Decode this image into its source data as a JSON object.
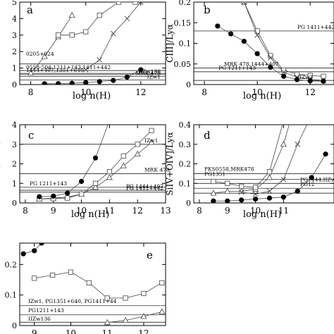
{
  "figure": {
    "panels": [
      {
        "id": "a",
        "letter": "a",
        "xlabel": "log n(H)",
        "ylabel": "",
        "xticks": [
          "8",
          "10",
          "12"
        ],
        "yticks": [
          "0",
          "1",
          "2",
          "3",
          "4",
          "5"
        ],
        "annotations": [
          "0205+024",
          "0558-504,1211+143,1411+442",
          "1444+407,1351+640",
          "IIZw136",
          "MRK 478",
          "IZw1"
        ]
      },
      {
        "id": "b",
        "letter": "b",
        "xlabel": "log n(H)",
        "ylabel": "CIII]/Lyα",
        "xticks": [
          "8",
          "10",
          "12"
        ],
        "yticks": [
          "0",
          "0.05",
          "0.1",
          "0.15",
          "0.2"
        ],
        "annotations": [
          "PG 1411+442",
          "MRK 478,1444+407",
          "PG 1211+143",
          "IZw1"
        ]
      },
      {
        "id": "c",
        "letter": "c",
        "xlabel": "log n(H)",
        "ylabel": "SiIII]/CIII]",
        "xticks": [
          "8",
          "9",
          "10",
          "11",
          "12",
          "13"
        ],
        "yticks": [
          "0",
          "1",
          "2",
          "3",
          "4"
        ],
        "annotations": [
          "IZw1",
          "MRK 478",
          "PG 1211+143",
          "PG 1444+407",
          "PG 1411+442"
        ]
      },
      {
        "id": "d",
        "letter": "d",
        "xlabel": "log n(H)",
        "ylabel": "SiIV+OIV]/Lyα",
        "xticks": [
          "8",
          "9",
          "10",
          "11"
        ],
        "yticks": [
          "0",
          "0.1",
          "0.2",
          "0.3",
          "0.4"
        ],
        "annotations": [
          "PKS0558,MRK478",
          "PG1351",
          "PG1444,IIZw1",
          "PG12"
        ]
      },
      {
        "id": "e",
        "letter": "e",
        "xlabel": "",
        "ylabel": "",
        "xticks": [
          "9",
          "10",
          "11",
          "12"
        ],
        "yticks": [
          "0",
          "0.1",
          "0.2"
        ],
        "annotations": [
          "IZw1, PG1351+640, PG1411+44",
          "PG1211+143",
          "IIZw136",
          "IZw1,PG1"
        ]
      }
    ]
  },
  "chart_data": [
    {
      "type": "line",
      "panel": "a",
      "xlim": [
        7.6,
        12.9
      ],
      "ylim": [
        0,
        5
      ],
      "series": [
        {
          "marker": "triangle",
          "x": [
            8.0,
            8.5,
            9.0,
            9.5
          ],
          "y": [
            0.7,
            1.7,
            2.9,
            4.2
          ]
        },
        {
          "marker": "square",
          "x": [
            9.0,
            9.5,
            10.0,
            10.5,
            11.2,
            11.8
          ],
          "y": [
            3.0,
            3.0,
            3.2,
            4.2,
            5.0,
            5.0
          ]
        },
        {
          "marker": "x",
          "x": [
            10.0,
            10.5,
            11.0,
            11.5,
            12.0
          ],
          "y": [
            0.9,
            1.5,
            3.1,
            4.0,
            5.0
          ]
        },
        {
          "marker": "circle",
          "x": [
            8.5,
            9.0,
            9.5,
            10.0,
            10.5,
            11.0,
            11.5,
            12.0
          ],
          "y": [
            0.05,
            0.06,
            0.08,
            0.12,
            0.18,
            0.25,
            0.45,
            0.9
          ]
        }
      ],
      "reference_lines": [
        1.25,
        0.85,
        0.68,
        0.6,
        0.5,
        0.28
      ]
    },
    {
      "type": "line",
      "panel": "b",
      "xlim": [
        7.6,
        12.9
      ],
      "ylim": [
        0,
        0.2
      ],
      "series": [
        {
          "marker": "square",
          "x": [
            9.0,
            9.5,
            10.0,
            10.5,
            11.0,
            11.5,
            12.0,
            12.5
          ],
          "y": [
            0.25,
            0.2,
            0.13,
            0.07,
            0.035,
            0.025,
            0.022,
            0.02
          ]
        },
        {
          "marker": "x",
          "x": [
            9.5,
            10.0,
            10.5,
            11.0,
            11.5,
            12.0,
            12.5
          ],
          "y": [
            0.2,
            0.12,
            0.065,
            0.03,
            0.018,
            0.013,
            0.01
          ]
        },
        {
          "marker": "circle",
          "x": [
            8.5,
            9.0,
            9.5,
            10.0,
            10.5,
            11.0,
            11.5,
            12.0,
            12.5
          ],
          "y": [
            0.142,
            0.123,
            0.105,
            0.075,
            0.042,
            0.02,
            0.012,
            0.009,
            0.008
          ]
        }
      ],
      "reference_lines": [
        0.13,
        0.04,
        0.031,
        0.01
      ]
    },
    {
      "type": "line",
      "panel": "c",
      "xlim": [
        7.8,
        13.0
      ],
      "ylim": [
        0,
        4
      ],
      "series": [
        {
          "marker": "triangle",
          "x": [
            8.5,
            9.0,
            9.5,
            10.0,
            10.5,
            11.0,
            11.5,
            12.0,
            12.5
          ],
          "y": [
            0.2,
            0.25,
            0.3,
            0.45,
            0.8,
            1.3,
            1.9,
            2.5,
            3.1
          ]
        },
        {
          "marker": "square",
          "x": [
            8.5,
            9.0,
            9.5,
            10.0,
            10.5,
            11.0,
            11.5,
            12.0,
            12.5
          ],
          "y": [
            0.2,
            0.22,
            0.25,
            0.45,
            1.0,
            1.6,
            2.4,
            3.0,
            3.7
          ]
        },
        {
          "marker": "circle",
          "x": [
            8.5,
            9.0,
            9.5,
            10.0,
            10.5,
            11.0
          ],
          "y": [
            0.32,
            0.35,
            0.5,
            1.1,
            2.3,
            4.2
          ]
        }
      ],
      "reference_lines": [
        3.0,
        1.5,
        0.8,
        0.65,
        0.55
      ]
    },
    {
      "type": "line",
      "panel": "d",
      "xlim": [
        7.8,
        12.8
      ],
      "ylim": [
        0,
        0.4
      ],
      "series": [
        {
          "marker": "triangle",
          "x": [
            8.5,
            9.0,
            9.5,
            10.0,
            10.5,
            11.0,
            11.3
          ],
          "y": [
            0.05,
            0.06,
            0.06,
            0.07,
            0.13,
            0.3,
            0.45
          ]
        },
        {
          "marker": "square",
          "x": [
            8.5,
            9.0,
            9.5,
            10.0,
            10.5,
            11.0
          ],
          "y": [
            0.11,
            0.1,
            0.085,
            0.08,
            0.16,
            0.42
          ]
        },
        {
          "marker": "x",
          "x": [
            9.5,
            10.0,
            10.5,
            11.0,
            11.5,
            12.0
          ],
          "y": [
            0.055,
            0.045,
            0.06,
            0.12,
            0.3,
            0.45
          ]
        },
        {
          "marker": "circle",
          "x": [
            8.5,
            9.0,
            9.5,
            10.0,
            10.5,
            11.0,
            11.5,
            12.0,
            12.5
          ],
          "y": [
            0.01,
            0.01,
            0.015,
            0.02,
            0.025,
            0.03,
            0.06,
            0.13,
            0.25
          ]
        }
      ],
      "reference_lines": [
        0.15,
        0.12,
        0.1,
        0.075,
        0.05
      ]
    },
    {
      "type": "line",
      "panel": "e",
      "xlim": [
        8.6,
        12.6
      ],
      "ylim": [
        0,
        0.27
      ],
      "series": [
        {
          "marker": "circle",
          "x": [
            8.7,
            9.0,
            9.2
          ],
          "y": [
            0.235,
            0.245,
            0.27
          ]
        },
        {
          "marker": "square",
          "x": [
            9.0,
            9.5,
            10.0,
            10.5,
            11.0,
            11.5,
            12.0,
            12.5
          ],
          "y": [
            0.155,
            0.165,
            0.175,
            0.14,
            0.09,
            0.09,
            0.105,
            0.14
          ]
        },
        {
          "marker": "triangle",
          "x": [
            11.0,
            11.5,
            12.0,
            12.5
          ],
          "y": [
            0.01,
            0.017,
            0.03,
            0.045
          ]
        }
      ],
      "reference_lines": [
        0.065,
        0.035,
        0.011
      ]
    }
  ]
}
